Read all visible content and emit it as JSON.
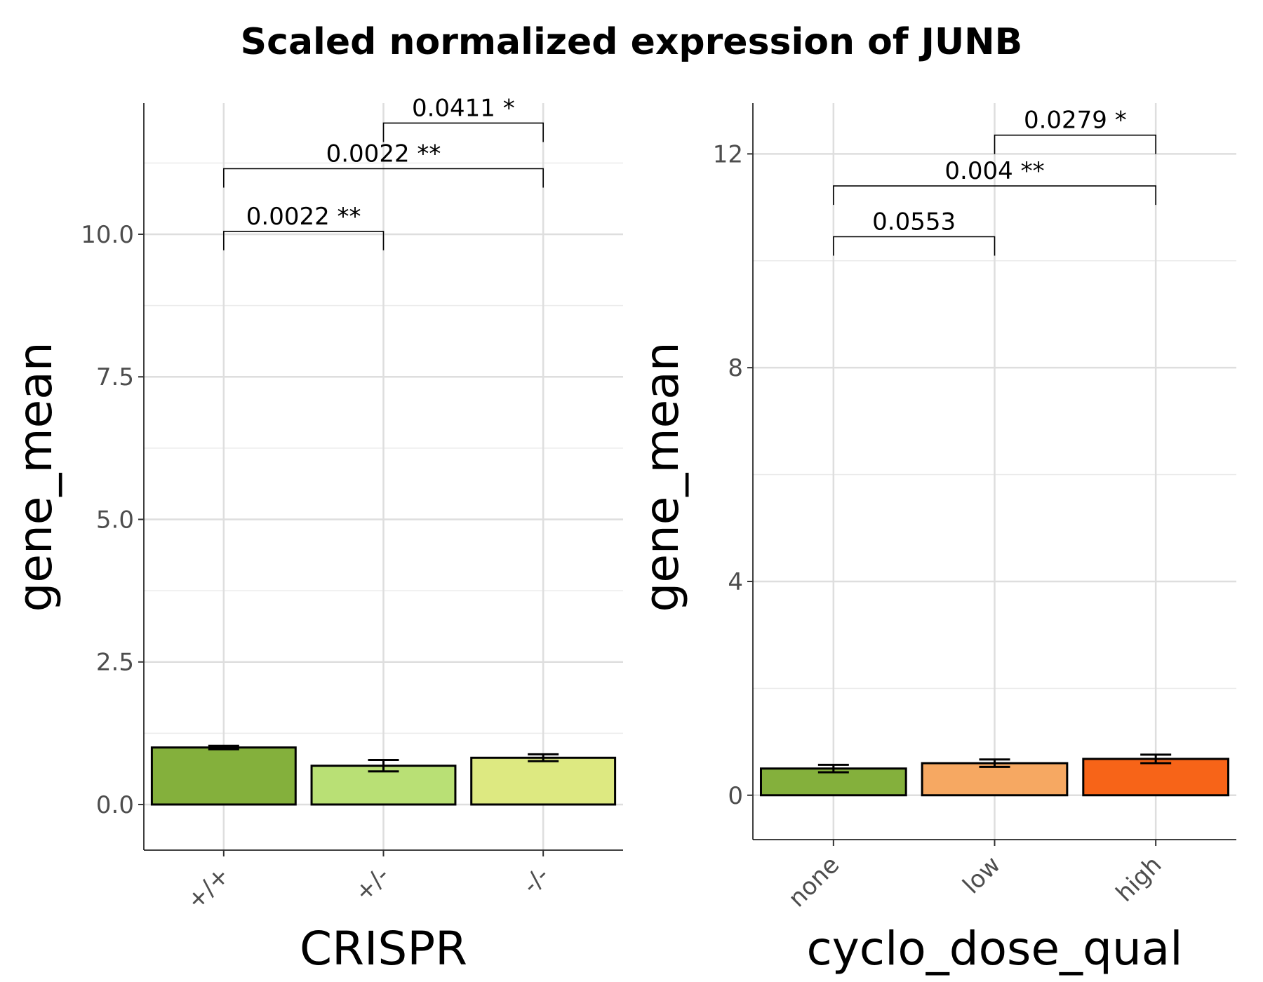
{
  "title": "Scaled normalized expression of JUNB",
  "chart_data": [
    {
      "type": "bar",
      "xlabel": "CRISPR",
      "ylabel": "gene_mean",
      "categories": [
        "+/+",
        "+/-",
        "-/-"
      ],
      "values": [
        1.0,
        0.68,
        0.82
      ],
      "error": [
        0.03,
        0.1,
        0.06
      ],
      "colors": [
        "#84b03c",
        "#b9e075",
        "#dde981"
      ],
      "ylim": [
        -0.8,
        12.3
      ],
      "yticks": [
        0.0,
        2.5,
        5.0,
        7.5,
        10.0
      ],
      "ytick_labels": [
        "0.0",
        "2.5",
        "5.0",
        "7.5",
        "10.0"
      ],
      "grid": true,
      "comparisons": [
        {
          "from": 0,
          "to": 1,
          "y": 10.05,
          "label": "0.0022 **"
        },
        {
          "from": 0,
          "to": 2,
          "y": 11.15,
          "label": "0.0022 **"
        },
        {
          "from": 1,
          "to": 2,
          "y": 11.95,
          "label": "0.0411 *"
        }
      ]
    },
    {
      "type": "bar",
      "xlabel": "cyclo_dose_qual",
      "ylabel": "gene_mean",
      "categories": [
        "none",
        "low",
        "high"
      ],
      "values": [
        0.5,
        0.6,
        0.68
      ],
      "error": [
        0.07,
        0.07,
        0.08
      ],
      "colors": [
        "#84b03c",
        "#f6a862",
        "#f76418"
      ],
      "ylim": [
        -0.83,
        12.95
      ],
      "yticks": [
        0,
        4,
        8,
        12
      ],
      "ytick_labels": [
        "0",
        "4",
        "8",
        "12"
      ],
      "grid": true,
      "comparisons": [
        {
          "from": 0,
          "to": 1,
          "y": 10.45,
          "label": "0.0553"
        },
        {
          "from": 0,
          "to": 2,
          "y": 11.4,
          "label": "0.004 **"
        },
        {
          "from": 1,
          "to": 2,
          "y": 12.35,
          "label": "0.0279 *"
        }
      ]
    }
  ]
}
